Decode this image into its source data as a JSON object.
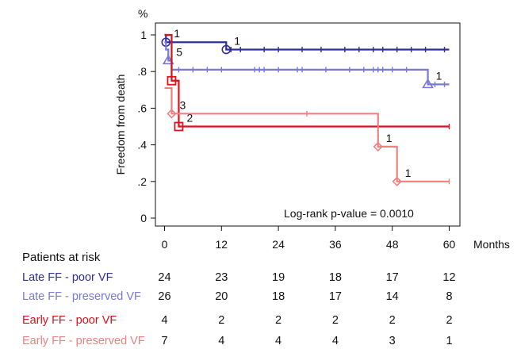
{
  "chart_data": {
    "type": "line",
    "title": "",
    "ylabel": "Freedom from death",
    "yunit": "%",
    "xunit": "Months",
    "xlim": [
      0,
      60
    ],
    "ylim": [
      0,
      1
    ],
    "xticks": [
      0,
      12,
      24,
      36,
      48,
      60
    ],
    "yticks": [
      0,
      0.2,
      0.4,
      0.6,
      0.8,
      1
    ],
    "ytick_labels": [
      "0",
      ".2",
      ".4",
      ".6",
      ".8",
      "1"
    ],
    "annotation": "Log-rank p-value = 0.0010",
    "series": [
      {
        "name": "Late FF - poor VF",
        "color": "#2e2e9a",
        "marker": "circle",
        "steps": [
          [
            0,
            1.0
          ],
          [
            0.3,
            0.96
          ],
          [
            13,
            0.92
          ],
          [
            60,
            0.92
          ]
        ],
        "events": [
          {
            "x": 0.3,
            "y": 0.96,
            "label": "1"
          },
          {
            "x": 13,
            "y": 0.92,
            "label": "1"
          }
        ],
        "censor_x": [
          14,
          16,
          21,
          24,
          29,
          33,
          38,
          41,
          44,
          46,
          49,
          52,
          55,
          59
        ]
      },
      {
        "name": "Late FF - preserved VF",
        "color": "#7878d6",
        "marker": "triangle",
        "steps": [
          [
            0,
            0.96
          ],
          [
            0.3,
            0.92
          ],
          [
            0.8,
            0.86
          ],
          [
            1.5,
            0.81
          ],
          [
            55.5,
            0.73
          ],
          [
            60,
            0.73
          ]
        ],
        "events": [
          {
            "x": 0.8,
            "y": 0.86,
            "label": "5"
          },
          {
            "x": 55.5,
            "y": 0.73,
            "label": "1"
          }
        ],
        "censor_x": [
          3,
          6,
          9,
          12,
          19,
          20,
          21,
          24,
          28,
          29,
          34,
          39,
          42,
          44,
          45,
          46,
          48,
          51,
          57,
          59
        ]
      },
      {
        "name": "Early FF - poor VF",
        "color": "#d9121b",
        "marker": "square",
        "steps": [
          [
            0,
            1.0
          ],
          [
            1.5,
            0.75
          ],
          [
            3,
            0.5
          ],
          [
            60,
            0.5
          ]
        ],
        "events": [
          {
            "x": 1.5,
            "y": 0.75,
            "label": ""
          },
          {
            "x": 3,
            "y": 0.5,
            "label": "2"
          }
        ],
        "censor_x": [
          60
        ]
      },
      {
        "name": "Early FF - preserved VF",
        "color": "#f08080",
        "marker": "diamond",
        "steps": [
          [
            0,
            0.71
          ],
          [
            1.5,
            0.57
          ],
          [
            45,
            0.39
          ],
          [
            49,
            0.2
          ],
          [
            60,
            0.2
          ]
        ],
        "events": [
          {
            "x": 1.5,
            "y": 0.57,
            "label": "3"
          },
          {
            "x": 45,
            "y": 0.39,
            "label": "1"
          },
          {
            "x": 49,
            "y": 0.2,
            "label": "1"
          }
        ],
        "censor_x": [
          30,
          60
        ]
      }
    ]
  },
  "risk_table": {
    "title": "Patients at risk",
    "times": [
      0,
      12,
      24,
      36,
      48,
      60
    ],
    "rows": [
      {
        "label": "Late FF - poor VF",
        "color": "#2e2e9a",
        "counts": [
          "24",
          "23",
          "19",
          "18",
          "17",
          "12"
        ]
      },
      {
        "label": "Late FF - preserved VF",
        "color": "#7878d6",
        "counts": [
          "26",
          "20",
          "18",
          "17",
          "14",
          "8"
        ]
      },
      {
        "label": "Early FF - poor VF",
        "color": "#d9121b",
        "counts": [
          "4",
          "2",
          "2",
          "2",
          "2",
          "2"
        ]
      },
      {
        "label": "Early FF - preserved VF",
        "color": "#f08080",
        "counts": [
          "7",
          "4",
          "4",
          "4",
          "3",
          "1"
        ]
      }
    ]
  }
}
